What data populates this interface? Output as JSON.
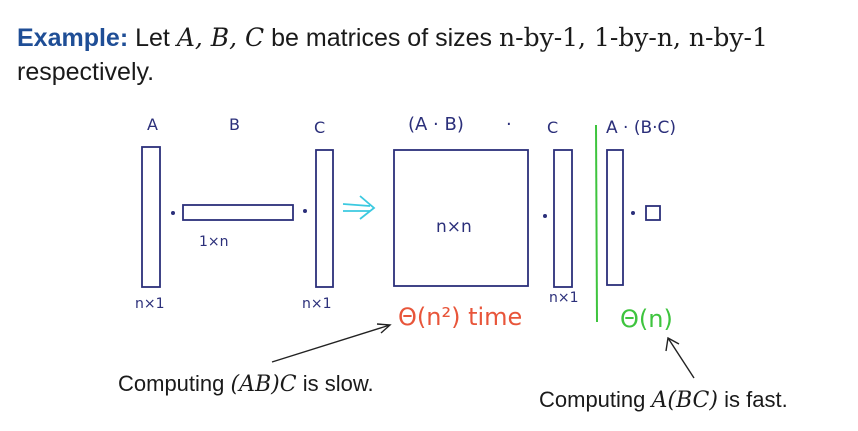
{
  "slide": {
    "lead": "Example:",
    "text_before": "Let",
    "matrices": "A, B, C",
    "text_mid": "be matrices of sizes",
    "sizes": "n-by-1, 1-by-n, n-by-1",
    "line2": "respectively."
  },
  "sketch": {
    "label_a": "A",
    "label_b": "B",
    "label_c": "C",
    "label_ab": "(A · B)",
    "dot": "·",
    "label_c2": "C",
    "label_a_bc": "A · (B·C)",
    "dim_a": "n×1",
    "dim_b": "1×n",
    "dim_c": "n×1",
    "dim_square": "n×n",
    "dim_c2": "n×1",
    "cost_slow": "Θ(n²) time",
    "cost_fast": "Θ(n)"
  },
  "captions": {
    "slow": {
      "prefix": "Computing",
      "expr": "(AB)C",
      "suffix": "is slow."
    },
    "fast": {
      "prefix": "Computing",
      "expr": "A(BC)",
      "suffix": "is fast."
    }
  },
  "colors": {
    "title_accent": "#1f4e96",
    "ink": "#2b2f7a",
    "red": "#e8553a",
    "green": "#3ec43e",
    "cyan": "#3bc9e0"
  }
}
